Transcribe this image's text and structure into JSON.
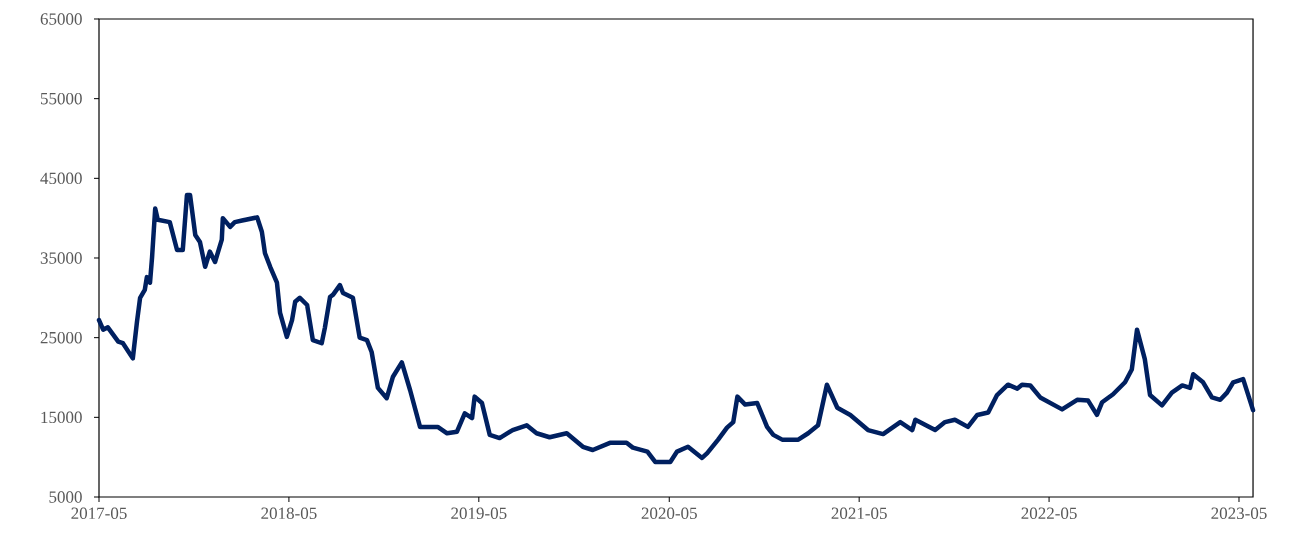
{
  "chart_data": {
    "type": "line",
    "color": "#002060",
    "line_style": "solid",
    "x": [
      "2017-05-01",
      "2017-05-09",
      "2017-05-18",
      "2017-06-07",
      "2017-06-16",
      "2017-07-05",
      "2017-07-13",
      "2017-07-19",
      "2017-07-28",
      "2017-08-01",
      "2017-08-07",
      "2017-08-11",
      "2017-08-17",
      "2017-08-22",
      "2017-09-14",
      "2017-09-28",
      "2017-10-09",
      "2017-10-17",
      "2017-10-23",
      "2017-11-02",
      "2017-11-11",
      "2017-11-21",
      "2017-11-30",
      "2017-12-10",
      "2017-12-23",
      "2017-12-25",
      "2018-01-08",
      "2018-01-17",
      "2018-01-31",
      "2018-03-01",
      "2018-03-10",
      "2018-03-16",
      "2018-03-26",
      "2018-04-08",
      "2018-04-14",
      "2018-04-27",
      "2018-05-07",
      "2018-05-13",
      "2018-05-22",
      "2018-06-05",
      "2018-06-16",
      "2018-07-03",
      "2018-07-09",
      "2018-07-19",
      "2018-07-25",
      "2018-08-07",
      "2018-08-13",
      "2018-09-01",
      "2018-09-14",
      "2018-09-28",
      "2018-10-07",
      "2018-10-19",
      "2018-11-05",
      "2018-11-17",
      "2018-12-04",
      "2018-12-20",
      "2019-01-08",
      "2019-02-11",
      "2019-03-01",
      "2019-03-20",
      "2019-04-04",
      "2019-04-18",
      "2019-04-23",
      "2019-05-07",
      "2019-05-22",
      "2019-06-10",
      "2019-07-05",
      "2019-08-01",
      "2019-08-20",
      "2019-09-14",
      "2019-10-17",
      "2019-11-17",
      "2019-12-06",
      "2020-01-08",
      "2020-02-09",
      "2020-02-21",
      "2020-03-20",
      "2020-04-04",
      "2020-05-03",
      "2020-05-16",
      "2020-06-06",
      "2020-07-03",
      "2020-07-13",
      "2020-08-03",
      "2020-08-20",
      "2020-09-01",
      "2020-09-09",
      "2020-09-24",
      "2020-10-17",
      "2020-11-05",
      "2020-11-17",
      "2020-12-04",
      "2021-01-04",
      "2021-01-23",
      "2021-02-11",
      "2021-02-28",
      "2021-03-20",
      "2021-04-14",
      "2021-05-18",
      "2021-06-16",
      "2021-07-19",
      "2021-08-11",
      "2021-08-17",
      "2021-09-24",
      "2021-10-13",
      "2021-11-01",
      "2021-11-26",
      "2021-12-14",
      "2022-01-04",
      "2022-01-21",
      "2022-02-11",
      "2022-03-01",
      "2022-03-10",
      "2022-03-26",
      "2022-04-14",
      "2022-05-26",
      "2022-06-24",
      "2022-07-15",
      "2022-08-01",
      "2022-08-11",
      "2022-09-01",
      "2022-09-24",
      "2022-10-07",
      "2022-10-17",
      "2022-11-01",
      "2022-11-11",
      "2022-12-04",
      "2022-12-23",
      "2023-01-12",
      "2023-01-27",
      "2023-02-02",
      "2023-02-21",
      "2023-03-10",
      "2023-03-26",
      "2023-04-08",
      "2023-04-20",
      "2023-05-09",
      "2023-05-28"
    ],
    "values": [
      27200,
      26000,
      26300,
      24500,
      24300,
      22400,
      27000,
      30000,
      31000,
      32600,
      31900,
      35100,
      41200,
      39800,
      39500,
      36000,
      36000,
      42900,
      42900,
      37900,
      37000,
      33900,
      35800,
      34500,
      37300,
      40000,
      38900,
      39500,
      39700,
      40100,
      38300,
      35600,
      33900,
      31900,
      28100,
      25100,
      27200,
      29500,
      30000,
      29100,
      24700,
      24300,
      26200,
      30100,
      30400,
      31600,
      30600,
      30000,
      25000,
      24700,
      23200,
      18700,
      17400,
      20100,
      21900,
      18400,
      13800,
      13800,
      13000,
      13200,
      15500,
      14900,
      17600,
      16800,
      12800,
      12400,
      13400,
      14000,
      13000,
      12500,
      13000,
      11300,
      10900,
      11800,
      11800,
      11200,
      10700,
      9400,
      9400,
      10700,
      11300,
      9900,
      10500,
      12200,
      13700,
      14400,
      17600,
      16600,
      16800,
      13800,
      12800,
      12200,
      12200,
      13000,
      14000,
      19100,
      16200,
      15300,
      13400,
      12900,
      14400,
      13400,
      14700,
      13400,
      14400,
      14700,
      13800,
      15300,
      15600,
      17800,
      19100,
      18600,
      19100,
      19000,
      17500,
      16000,
      17200,
      17100,
      15300,
      16900,
      17900,
      19400,
      21000,
      26000,
      22300,
      17800,
      16500,
      18100,
      19000,
      18700,
      20400,
      19400,
      17500,
      17200,
      18100,
      19400,
      19800,
      15900
    ],
    "xlim": [
      "2017-05-01",
      "2023-05-28"
    ],
    "xticks": [
      "2017-05",
      "2018-05",
      "2019-05",
      "2020-05",
      "2021-05",
      "2022-05",
      "2023-05"
    ],
    "ylim": [
      5000,
      65000
    ],
    "yticks": [
      5000,
      15000,
      25000,
      35000,
      45000,
      55000,
      65000
    ]
  }
}
